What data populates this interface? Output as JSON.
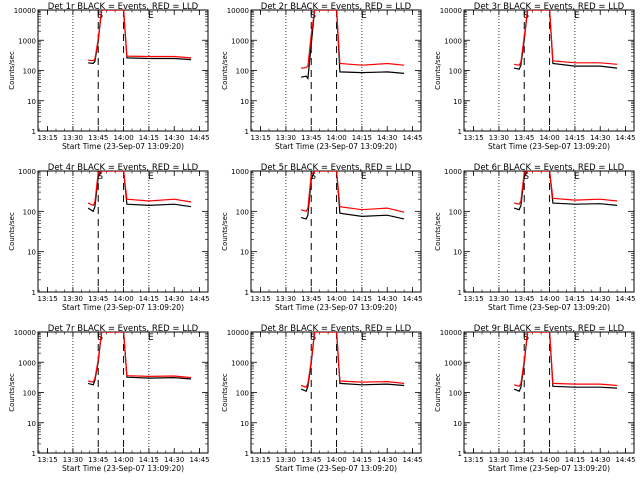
{
  "figure": {
    "title_format": "Det {id} BLACK = Events, RED = LLD",
    "x_label": "Start Time (23-Sep-07 13:09:20)",
    "y_label": "Counts/sec",
    "x_ticks": [
      "13:15",
      "13:30",
      "13:45",
      "14:00",
      "14:15",
      "14:30",
      "14:45"
    ],
    "y_ticks": [
      "1",
      "10",
      "100",
      "1000",
      "10000"
    ],
    "markers": [
      "S",
      "E"
    ],
    "colors": {
      "events": "#000000",
      "lld": "#ff0000",
      "axes": "#000000",
      "background": "#ffffff"
    }
  },
  "chart_data": [
    {
      "type": "line",
      "title": "Det 1r BLACK = Events, RED = LLD",
      "xlabel": "Start Time (23-Sep-07 13:09:20)",
      "ylabel": "Counts/sec",
      "x_range": [
        "13:09:20",
        "14:50"
      ],
      "y_range": [
        1,
        10000
      ],
      "y_scale": "log",
      "marker_times": {
        "S": "13:45",
        "E": "14:15"
      },
      "dashed_times": [
        "13:45",
        "14:00"
      ],
      "dotted_times": [
        "13:30",
        "14:15"
      ],
      "series": [
        {
          "name": "Events",
          "x": [
            "13:39",
            "13:42",
            "13:43",
            "13:45",
            "13:47",
            "14:00",
            "14:02",
            "14:15",
            "14:30",
            "14:40"
          ],
          "y": [
            180,
            170,
            200,
            900,
            10000,
            10000,
            260,
            250,
            250,
            230
          ]
        },
        {
          "name": "LLD",
          "x": [
            "13:39",
            "13:42",
            "13:43",
            "13:45",
            "13:47",
            "14:00",
            "14:02",
            "14:15",
            "14:30",
            "14:40"
          ],
          "y": [
            220,
            210,
            240,
            1100,
            10000,
            10000,
            300,
            290,
            290,
            260
          ]
        }
      ]
    },
    {
      "type": "line",
      "title": "Det 2r BLACK = Events, RED = LLD",
      "xlabel": "Start Time (23-Sep-07 13:09:20)",
      "ylabel": "Counts/sec",
      "x_range": [
        "13:09:20",
        "14:50"
      ],
      "y_range": [
        1,
        10000
      ],
      "y_scale": "log",
      "marker_times": {
        "S": "13:45",
        "E": "14:15"
      },
      "dashed_times": [
        "13:45",
        "14:00"
      ],
      "dotted_times": [
        "13:30",
        "14:15"
      ],
      "series": [
        {
          "name": "Events",
          "x": [
            "13:39",
            "13:42",
            "13:43",
            "13:45",
            "13:47",
            "14:00",
            "14:02",
            "14:15",
            "14:30",
            "14:40"
          ],
          "y": [
            60,
            65,
            55,
            700,
            10000,
            10000,
            90,
            85,
            90,
            80
          ]
        },
        {
          "name": "LLD",
          "x": [
            "13:39",
            "13:42",
            "13:43",
            "13:45",
            "13:47",
            "14:00",
            "14:02",
            "14:15",
            "14:30",
            "14:40"
          ],
          "y": [
            120,
            125,
            140,
            1500,
            10000,
            10000,
            170,
            150,
            170,
            150
          ]
        }
      ]
    },
    {
      "type": "line",
      "title": "Det 3r BLACK = Events, RED = LLD",
      "xlabel": "Start Time (23-Sep-07 13:09:20)",
      "ylabel": "Counts/sec",
      "x_range": [
        "13:09:20",
        "14:50"
      ],
      "y_range": [
        1,
        10000
      ],
      "y_scale": "log",
      "marker_times": {
        "S": "13:45",
        "E": "14:15"
      },
      "dashed_times": [
        "13:45",
        "14:00"
      ],
      "dotted_times": [
        "13:30",
        "14:15"
      ],
      "series": [
        {
          "name": "Events",
          "x": [
            "13:39",
            "13:42",
            "13:43",
            "13:45",
            "13:47",
            "14:00",
            "14:02",
            "14:15",
            "14:30",
            "14:40"
          ],
          "y": [
            120,
            110,
            150,
            1000,
            10000,
            10000,
            170,
            140,
            140,
            120
          ]
        },
        {
          "name": "LLD",
          "x": [
            "13:39",
            "13:42",
            "13:43",
            "13:45",
            "13:47",
            "14:00",
            "14:02",
            "14:15",
            "14:30",
            "14:40"
          ],
          "y": [
            160,
            150,
            190,
            1300,
            10000,
            10000,
            210,
            180,
            180,
            160
          ]
        }
      ]
    },
    {
      "type": "line",
      "title": "Det 4r BLACK = Events, RED = LLD",
      "xlabel": "Start Time (23-Sep-07 13:09:20)",
      "ylabel": "Counts/sec",
      "x_range": [
        "13:09:20",
        "14:50"
      ],
      "y_range": [
        1,
        1000
      ],
      "y_scale": "log",
      "marker_times": {
        "S": "13:45",
        "E": "14:15"
      },
      "dashed_times": [
        "13:45",
        "14:00"
      ],
      "dotted_times": [
        "13:30",
        "14:15"
      ],
      "series": [
        {
          "name": "Events",
          "x": [
            "13:39",
            "13:42",
            "13:43",
            "13:45",
            "13:47",
            "14:00",
            "14:02",
            "14:15",
            "14:30",
            "14:40"
          ],
          "y": [
            120,
            100,
            130,
            700,
            1000,
            1000,
            150,
            140,
            150,
            130
          ]
        },
        {
          "name": "LLD",
          "x": [
            "13:39",
            "13:42",
            "13:43",
            "13:45",
            "13:47",
            "14:00",
            "14:02",
            "14:15",
            "14:30",
            "14:40"
          ],
          "y": [
            160,
            140,
            170,
            900,
            1000,
            1000,
            200,
            180,
            200,
            170
          ]
        }
      ]
    },
    {
      "type": "line",
      "title": "Det 5r BLACK = Events, RED = LLD",
      "xlabel": "Start Time (23-Sep-07 13:09:20)",
      "ylabel": "Counts/sec",
      "x_range": [
        "13:09:20",
        "14:50"
      ],
      "y_range": [
        1,
        1000
      ],
      "y_scale": "log",
      "marker_times": {
        "S": "13:45",
        "E": "14:15"
      },
      "dashed_times": [
        "13:45",
        "14:00"
      ],
      "dotted_times": [
        "13:30",
        "14:15"
      ],
      "series": [
        {
          "name": "Events",
          "x": [
            "13:39",
            "13:42",
            "13:43",
            "13:45",
            "13:47",
            "14:00",
            "14:02",
            "14:15",
            "14:30",
            "14:40"
          ],
          "y": [
            70,
            65,
            80,
            600,
            1000,
            1000,
            90,
            75,
            80,
            65
          ]
        },
        {
          "name": "LLD",
          "x": [
            "13:39",
            "13:42",
            "13:43",
            "13:45",
            "13:47",
            "14:00",
            "14:02",
            "14:15",
            "14:30",
            "14:40"
          ],
          "y": [
            110,
            100,
            120,
            800,
            1000,
            1000,
            130,
            110,
            120,
            95
          ]
        }
      ]
    },
    {
      "type": "line",
      "title": "Det 6r BLACK = Events, RED = LLD",
      "xlabel": "Start Time (23-Sep-07 13:09:20)",
      "ylabel": "Counts/sec",
      "x_range": [
        "13:09:20",
        "14:50"
      ],
      "y_range": [
        1,
        1000
      ],
      "y_scale": "log",
      "marker_times": {
        "S": "13:45",
        "E": "14:15"
      },
      "dashed_times": [
        "13:45",
        "14:00"
      ],
      "dotted_times": [
        "13:30",
        "14:15"
      ],
      "series": [
        {
          "name": "Events",
          "x": [
            "13:39",
            "13:42",
            "13:43",
            "13:45",
            "13:47",
            "14:00",
            "14:02",
            "14:15",
            "14:30",
            "14:40"
          ],
          "y": [
            120,
            110,
            140,
            700,
            1000,
            1000,
            160,
            150,
            155,
            140
          ]
        },
        {
          "name": "LLD",
          "x": [
            "13:39",
            "13:42",
            "13:43",
            "13:45",
            "13:47",
            "14:00",
            "14:02",
            "14:15",
            "14:30",
            "14:40"
          ],
          "y": [
            160,
            150,
            180,
            900,
            1000,
            1000,
            210,
            190,
            200,
            180
          ]
        }
      ]
    },
    {
      "type": "line",
      "title": "Det 7r BLACK = Events, RED = LLD",
      "xlabel": "Start Time (23-Sep-07 13:09:20)",
      "ylabel": "Counts/sec",
      "x_range": [
        "13:09:20",
        "14:50"
      ],
      "y_range": [
        1,
        10000
      ],
      "y_scale": "log",
      "marker_times": {
        "S": "13:45",
        "E": "14:15"
      },
      "dashed_times": [
        "13:45",
        "14:00"
      ],
      "dotted_times": [
        "13:30",
        "14:15"
      ],
      "series": [
        {
          "name": "Events",
          "x": [
            "13:39",
            "13:42",
            "13:43",
            "13:45",
            "13:47",
            "14:00",
            "14:02",
            "14:15",
            "14:30",
            "14:40"
          ],
          "y": [
            200,
            180,
            250,
            1000,
            10000,
            10000,
            320,
            300,
            310,
            280
          ]
        },
        {
          "name": "LLD",
          "x": [
            "13:39",
            "13:42",
            "13:43",
            "13:45",
            "13:47",
            "14:00",
            "14:02",
            "14:15",
            "14:30",
            "14:40"
          ],
          "y": [
            240,
            220,
            290,
            1200,
            10000,
            10000,
            360,
            340,
            350,
            310
          ]
        }
      ]
    },
    {
      "type": "line",
      "title": "Det 8r BLACK = Events, RED = LLD",
      "xlabel": "Start Time (23-Sep-07 13:09:20)",
      "ylabel": "Counts/sec",
      "x_range": [
        "13:09:20",
        "14:50"
      ],
      "y_range": [
        1,
        10000
      ],
      "y_scale": "log",
      "marker_times": {
        "S": "13:45",
        "E": "14:15"
      },
      "dashed_times": [
        "13:45",
        "14:00"
      ],
      "dotted_times": [
        "13:30",
        "14:15"
      ],
      "series": [
        {
          "name": "Events",
          "x": [
            "13:39",
            "13:42",
            "13:43",
            "13:45",
            "13:47",
            "14:00",
            "14:02",
            "14:15",
            "14:30",
            "14:40"
          ],
          "y": [
            130,
            110,
            160,
            900,
            10000,
            10000,
            200,
            180,
            190,
            170
          ]
        },
        {
          "name": "LLD",
          "x": [
            "13:39",
            "13:42",
            "13:43",
            "13:45",
            "13:47",
            "14:00",
            "14:02",
            "14:15",
            "14:30",
            "14:40"
          ],
          "y": [
            170,
            150,
            200,
            1100,
            10000,
            10000,
            240,
            220,
            230,
            200
          ]
        }
      ]
    },
    {
      "type": "line",
      "title": "Det 9r BLACK = Events, RED = LLD",
      "xlabel": "Start Time (23-Sep-07 13:09:20)",
      "ylabel": "Counts/sec",
      "x_range": [
        "13:09:20",
        "14:50"
      ],
      "y_range": [
        1,
        10000
      ],
      "y_scale": "log",
      "marker_times": {
        "S": "13:45",
        "E": "14:15"
      },
      "dashed_times": [
        "13:45",
        "14:00"
      ],
      "dotted_times": [
        "13:30",
        "14:15"
      ],
      "series": [
        {
          "name": "Events",
          "x": [
            "13:39",
            "13:42",
            "13:43",
            "13:45",
            "13:47",
            "14:00",
            "14:02",
            "14:15",
            "14:30",
            "14:40"
          ],
          "y": [
            130,
            110,
            150,
            900,
            10000,
            10000,
            160,
            150,
            150,
            140
          ]
        },
        {
          "name": "LLD",
          "x": [
            "13:39",
            "13:42",
            "13:43",
            "13:45",
            "13:47",
            "14:00",
            "14:02",
            "14:15",
            "14:30",
            "14:40"
          ],
          "y": [
            180,
            160,
            200,
            1100,
            10000,
            10000,
            200,
            190,
            190,
            170
          ]
        }
      ]
    }
  ]
}
